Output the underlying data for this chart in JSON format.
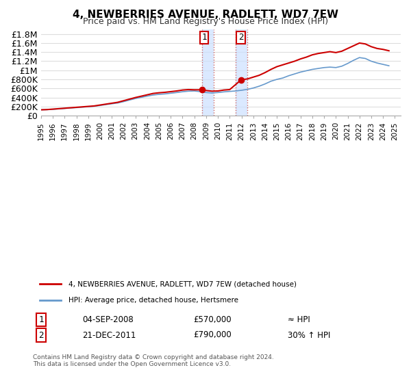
{
  "title": "4, NEWBERRIES AVENUE, RADLETT, WD7 7EW",
  "subtitle": "Price paid vs. HM Land Registry's House Price Index (HPI)",
  "legend_label_red": "4, NEWBERRIES AVENUE, RADLETT, WD7 7EW (detached house)",
  "legend_label_blue": "HPI: Average price, detached house, Hertsmere",
  "sale1_label": "1",
  "sale1_date": "04-SEP-2008",
  "sale1_price": "£570,000",
  "sale1_hpi": "≈ HPI",
  "sale2_label": "2",
  "sale2_date": "21-DEC-2011",
  "sale2_price": "£790,000",
  "sale2_hpi": "30% ↑ HPI",
  "footnote": "Contains HM Land Registry data © Crown copyright and database right 2024.\nThis data is licensed under the Open Government Licence v3.0.",
  "ylim": [
    0,
    1900000
  ],
  "yticks": [
    0,
    200000,
    400000,
    600000,
    800000,
    1000000,
    1200000,
    1400000,
    1600000,
    1800000
  ],
  "ytick_labels": [
    "£0",
    "£200K",
    "£400K",
    "£600K",
    "£800K",
    "£1M",
    "£1.2M",
    "£1.4M",
    "£1.6M",
    "£1.8M"
  ],
  "xlim_start": 1995.0,
  "xlim_end": 2025.5,
  "shade1_x_start": 2008.67,
  "shade1_x_end": 2009.67,
  "shade2_x_start": 2011.5,
  "shade2_x_end": 2012.5,
  "sale1_x": 2008.67,
  "sale1_y": 570000,
  "sale2_x": 2011.97,
  "sale2_y": 790000,
  "red_color": "#cc0000",
  "blue_color": "#6699cc",
  "shade_color": "#cce0ff",
  "marker_color": "#cc0000",
  "background_color": "#ffffff",
  "grid_color": "#dddddd"
}
